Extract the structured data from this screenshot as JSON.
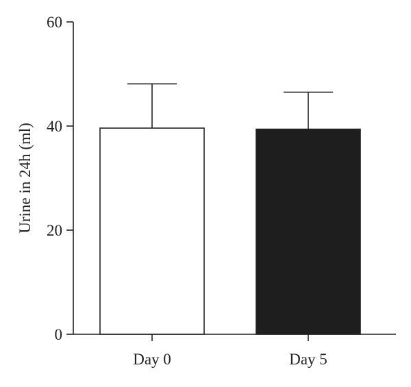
{
  "chart_data": {
    "type": "bar",
    "title": "",
    "xlabel": "",
    "ylabel": "Urine in 24h (ml)",
    "ylim": [
      0,
      60
    ],
    "yticks": [
      0,
      20,
      40,
      60
    ],
    "categories": [
      "Day 0",
      "Day 5"
    ],
    "values": [
      39.6,
      39.4
    ],
    "error_upper": [
      48.1,
      46.5
    ],
    "colors": [
      "#ffffff",
      "#1e1e1e"
    ],
    "edge_color": "#222222",
    "grid": false,
    "legend": "none"
  }
}
